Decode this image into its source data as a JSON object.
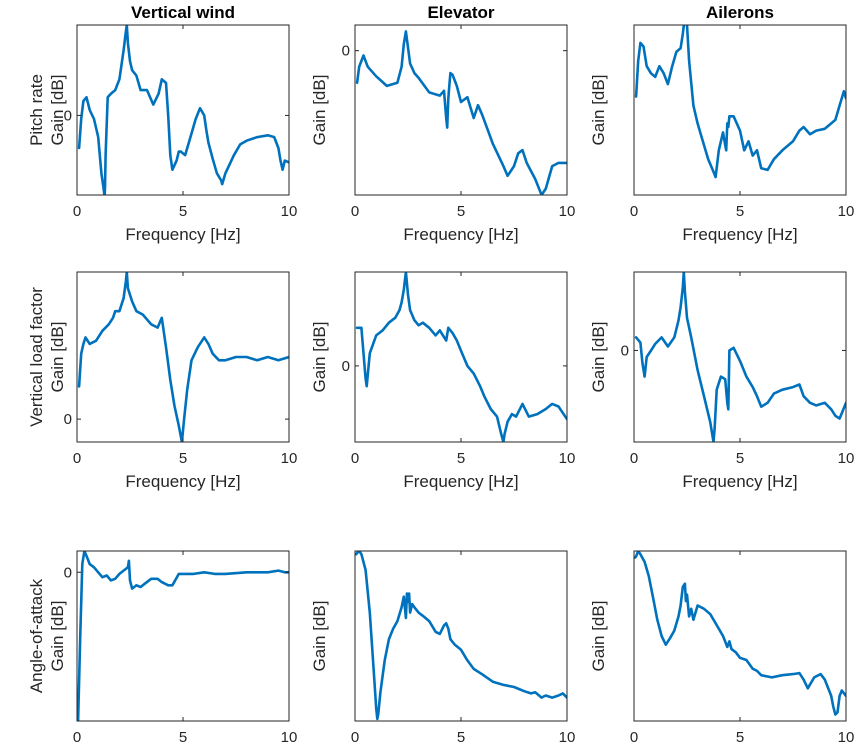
{
  "figure": {
    "column_titles": [
      "Vertical wind",
      "Elevator",
      "Ailerons"
    ],
    "row_labels": [
      "Pitch rate",
      "Vertical load factor",
      "Angle-of-attack"
    ],
    "line_color": "#0072BD",
    "axis_color": "#262626"
  },
  "chart_data": [
    {
      "type": "line",
      "row": 0,
      "col": 0,
      "title": "Vertical wind",
      "row_label": "Pitch rate",
      "xlabel": "Frequency [Hz]",
      "ylabel": "Gain [dB]",
      "xlim": [
        0,
        10
      ],
      "ylim": [
        -44,
        50
      ],
      "xticks": [
        0,
        5,
        10
      ],
      "xtick_labels": [
        "0",
        "5",
        "10"
      ],
      "yticks": [
        0
      ],
      "ytick_labels": [
        "0"
      ],
      "x": [
        0.1,
        0.2,
        0.3,
        0.45,
        0.6,
        0.8,
        1.0,
        1.15,
        1.25,
        1.3,
        1.32,
        1.35,
        1.45,
        1.6,
        1.8,
        2.0,
        2.1,
        2.2,
        2.3,
        2.35,
        2.4,
        2.5,
        2.6,
        2.8,
        3.0,
        3.3,
        3.6,
        3.85,
        4.0,
        4.2,
        4.3,
        4.4,
        4.5,
        4.7,
        4.8,
        4.9,
        5.1,
        5.3,
        5.6,
        5.8,
        6.0,
        6.1,
        6.2,
        6.4,
        6.6,
        6.8,
        6.85,
        7.0,
        7.4,
        7.7,
        8.0,
        8.5,
        9.0,
        9.3,
        9.5,
        9.6,
        9.7,
        9.8,
        10.0
      ],
      "y": [
        -18,
        -2,
        8,
        10,
        3,
        -2,
        -12,
        -32,
        -40,
        -45,
        -40,
        -22,
        10,
        12,
        14,
        20,
        28,
        36,
        46,
        50,
        40,
        30,
        25,
        22,
        14,
        14,
        6,
        12,
        20,
        18,
        0,
        -22,
        -30,
        -25,
        -20,
        -20,
        -22,
        -14,
        -2,
        4,
        0,
        -8,
        -15,
        -24,
        -32,
        -36,
        -38,
        -32,
        -22,
        -16,
        -14,
        -12,
        -11,
        -12,
        -18,
        -25,
        -30,
        -25,
        -26
      ]
    },
    {
      "type": "line",
      "row": 0,
      "col": 1,
      "title": "Elevator",
      "row_label": "",
      "xlabel": "Frequency [Hz]",
      "ylabel": "Gain [dB]",
      "xlim": [
        0,
        10
      ],
      "ylim": [
        -90,
        16
      ],
      "xticks": [
        0,
        5,
        10
      ],
      "xtick_labels": [
        "0",
        "5",
        "10"
      ],
      "yticks": [
        0
      ],
      "ytick_labels": [
        "0"
      ],
      "x": [
        0.1,
        0.2,
        0.4,
        0.6,
        1.0,
        1.5,
        2.0,
        2.2,
        2.3,
        2.4,
        2.5,
        2.6,
        2.8,
        3.0,
        3.5,
        4.0,
        4.2,
        4.3,
        4.35,
        4.4,
        4.45,
        4.5,
        4.6,
        4.8,
        5.0,
        5.3,
        5.6,
        5.8,
        6.0,
        6.5,
        7.0,
        7.2,
        7.5,
        7.7,
        7.9,
        8.1,
        8.5,
        8.8,
        9.0,
        9.3,
        9.6,
        10.0
      ],
      "y": [
        -20,
        -10,
        -3,
        -10,
        -16,
        -22,
        -20,
        -10,
        4,
        12,
        2,
        -8,
        -14,
        -17,
        -26,
        -28,
        -25,
        -42,
        -48,
        -30,
        -22,
        -14,
        -15,
        -22,
        -32,
        -29,
        -42,
        -34,
        -40,
        -58,
        -72,
        -78,
        -72,
        -64,
        -62,
        -70,
        -80,
        -90,
        -86,
        -72,
        -70,
        -70
      ]
    },
    {
      "type": "line",
      "row": 0,
      "col": 2,
      "title": "Ailerons",
      "row_label": "",
      "xlabel": "Frequency [Hz]",
      "ylabel": "Gain [dB]",
      "xlim": [
        0,
        10
      ],
      "ylim": [
        -80,
        15
      ],
      "xticks": [
        0,
        5,
        10
      ],
      "xtick_labels": [
        "0",
        "5",
        "10"
      ],
      "yticks": [],
      "ytick_labels": [],
      "x": [
        0.1,
        0.2,
        0.3,
        0.45,
        0.6,
        0.8,
        1.0,
        1.2,
        1.4,
        1.6,
        1.8,
        2.0,
        2.2,
        2.3,
        2.4,
        2.5,
        2.6,
        2.8,
        3.0,
        3.2,
        3.5,
        3.75,
        3.85,
        4.0,
        4.2,
        4.3,
        4.35,
        4.4,
        4.45,
        4.5,
        4.7,
        5.0,
        5.2,
        5.4,
        5.6,
        5.8,
        6.0,
        6.3,
        6.6,
        7.0,
        7.5,
        7.8,
        8.0,
        8.3,
        8.6,
        9.0,
        9.3,
        9.5,
        9.7,
        9.9,
        10.0
      ],
      "y": [
        -25,
        -5,
        5,
        3,
        -8,
        -12,
        -14,
        -8,
        -12,
        -18,
        -8,
        0,
        2,
        10,
        20,
        15,
        -5,
        -30,
        -40,
        -48,
        -60,
        -67,
        -70,
        -55,
        -45,
        -52,
        -55,
        -40,
        -42,
        -36,
        -36,
        -44,
        -55,
        -50,
        -58,
        -55,
        -65,
        -66,
        -60,
        -55,
        -50,
        -44,
        -42,
        -46,
        -44,
        -43,
        -40,
        -38,
        -30,
        -22,
        -26
      ]
    },
    {
      "type": "line",
      "row": 1,
      "col": 0,
      "title": "",
      "row_label": "Vertical load factor",
      "xlabel": "Frequency [Hz]",
      "ylabel": "Gain [dB]",
      "xlim": [
        0,
        10
      ],
      "ylim": [
        -7,
        45
      ],
      "xticks": [
        0,
        5,
        10
      ],
      "xtick_labels": [
        "0",
        "5",
        "10"
      ],
      "yticks": [
        0
      ],
      "ytick_labels": [
        "0"
      ],
      "x": [
        0.1,
        0.2,
        0.3,
        0.4,
        0.6,
        0.9,
        1.2,
        1.5,
        1.7,
        1.8,
        2.0,
        2.2,
        2.3,
        2.35,
        2.4,
        2.6,
        2.8,
        3.1,
        3.5,
        3.8,
        4.0,
        4.2,
        4.4,
        4.6,
        4.8,
        4.95,
        5.05,
        5.2,
        5.4,
        5.7,
        6.0,
        6.2,
        6.4,
        6.7,
        7.0,
        7.5,
        8.0,
        8.5,
        9.0,
        9.5,
        10.0
      ],
      "y": [
        10,
        20,
        23,
        25,
        23,
        24,
        27,
        29,
        31,
        33,
        33,
        37,
        42,
        45,
        40,
        36,
        33,
        32,
        29,
        28,
        31,
        22,
        12,
        4,
        -2,
        -7,
        0,
        9,
        18,
        22,
        25,
        23,
        20,
        18,
        18,
        19,
        19,
        18,
        19,
        18,
        19
      ]
    },
    {
      "type": "line",
      "row": 1,
      "col": 1,
      "title": "",
      "row_label": "",
      "xlabel": "Frequency [Hz]",
      "ylabel": "Gain [dB]",
      "xlim": [
        0,
        10
      ],
      "ylim": [
        -30,
        37
      ],
      "xticks": [
        0,
        5,
        10
      ],
      "xtick_labels": [
        "0",
        "5",
        "10"
      ],
      "yticks": [
        0
      ],
      "ytick_labels": [
        "0"
      ],
      "x": [
        0.1,
        0.3,
        0.4,
        0.5,
        0.55,
        0.7,
        1.0,
        1.3,
        1.6,
        1.9,
        2.1,
        2.2,
        2.3,
        2.4,
        2.5,
        2.6,
        2.8,
        3.0,
        3.2,
        3.5,
        3.8,
        4.0,
        4.3,
        4.4,
        4.6,
        4.8,
        5.0,
        5.3,
        5.6,
        5.9,
        6.1,
        6.4,
        6.7,
        6.9,
        7.0,
        7.05,
        7.2,
        7.4,
        7.6,
        7.9,
        8.2,
        8.6,
        9.0,
        9.3,
        9.6,
        10.0
      ],
      "y": [
        15,
        15,
        5,
        -5,
        -8,
        5,
        12,
        14,
        17,
        19,
        22,
        25,
        30,
        37,
        28,
        22,
        18,
        16,
        17,
        15,
        12,
        14,
        10,
        15,
        13,
        10,
        6,
        0,
        -3,
        -8,
        -12,
        -17,
        -20,
        -27,
        -30,
        -27,
        -22,
        -19,
        -20,
        -15,
        -20,
        -19,
        -17,
        -15,
        -16,
        -21
      ]
    },
    {
      "type": "line",
      "row": 1,
      "col": 2,
      "title": "",
      "row_label": "",
      "xlabel": "Frequency [Hz]",
      "ylabel": "Gain [dB]",
      "xlim": [
        0,
        10
      ],
      "ylim": [
        -70,
        60
      ],
      "xticks": [
        0,
        5,
        10
      ],
      "xtick_labels": [
        "0",
        "5",
        "10"
      ],
      "yticks": [
        0
      ],
      "ytick_labels": [
        "0"
      ],
      "x": [
        0.1,
        0.3,
        0.4,
        0.5,
        0.6,
        0.8,
        1.0,
        1.3,
        1.6,
        1.9,
        2.1,
        2.2,
        2.3,
        2.35,
        2.4,
        2.5,
        2.7,
        3.0,
        3.3,
        3.6,
        3.75,
        3.8,
        3.9,
        4.1,
        4.3,
        4.4,
        4.45,
        4.5,
        4.7,
        5.0,
        5.3,
        5.6,
        5.8,
        6.0,
        6.3,
        6.6,
        7.0,
        7.5,
        7.8,
        8.0,
        8.3,
        8.6,
        9.0,
        9.3,
        9.5,
        9.7,
        9.8,
        10.0
      ],
      "y": [
        10,
        6,
        -10,
        -20,
        -5,
        0,
        5,
        10,
        3,
        10,
        23,
        33,
        48,
        60,
        45,
        25,
        10,
        -15,
        -35,
        -55,
        -70,
        -60,
        -30,
        -20,
        -22,
        -40,
        -45,
        0,
        2,
        -8,
        -20,
        -28,
        -35,
        -43,
        -40,
        -33,
        -30,
        -28,
        -26,
        -35,
        -40,
        -42,
        -40,
        -45,
        -50,
        -52,
        -48,
        -40
      ]
    },
    {
      "type": "line",
      "row": 2,
      "col": 0,
      "title": "",
      "row_label": "Angle-of-attack",
      "xlabel": "Frequency [Hz]",
      "ylabel": "Gain [dB]",
      "xlim": [
        0,
        10
      ],
      "ylim": [
        -91,
        13
      ],
      "xticks": [
        0,
        5,
        10
      ],
      "xtick_labels": [
        "0",
        "5",
        "10"
      ],
      "yticks": [
        0
      ],
      "ytick_labels": [
        "0"
      ],
      "x": [
        0.05,
        0.15,
        0.25,
        0.35,
        0.45,
        0.6,
        0.8,
        1.0,
        1.2,
        1.4,
        1.6,
        1.8,
        2.0,
        2.2,
        2.4,
        2.45,
        2.5,
        2.6,
        2.8,
        3.0,
        3.2,
        3.5,
        3.8,
        4.0,
        4.3,
        4.5,
        4.8,
        5.0,
        5.5,
        6.0,
        6.5,
        7.0,
        8.0,
        9.0,
        9.5,
        9.8,
        10.0
      ],
      "y": [
        -91,
        -40,
        5,
        13,
        10,
        5,
        3,
        0,
        -3,
        -2,
        -5,
        -4,
        -1,
        1,
        3,
        7,
        -5,
        -10,
        -8,
        -9,
        -7,
        -4,
        -4,
        -6,
        -8,
        -8,
        -1,
        -1,
        -1,
        0,
        -1,
        -1,
        0,
        0,
        1,
        0,
        0
      ]
    },
    {
      "type": "line",
      "row": 2,
      "col": 1,
      "title": "",
      "row_label": "",
      "xlabel": "Frequency [Hz]",
      "ylabel": "Gain [dB]",
      "xlim": [
        0,
        10
      ],
      "ylim": [
        -122,
        38
      ],
      "xticks": [
        0,
        5,
        10
      ],
      "xtick_labels": [
        "0",
        "5",
        "10"
      ],
      "yticks": [],
      "ytick_labels": [],
      "x": [
        0.05,
        0.1,
        0.2,
        0.3,
        0.5,
        0.7,
        0.9,
        1.0,
        1.05,
        1.1,
        1.2,
        1.4,
        1.6,
        1.8,
        2.0,
        2.2,
        2.3,
        2.4,
        2.45,
        2.5,
        2.55,
        2.6,
        2.7,
        2.8,
        3.0,
        3.2,
        3.5,
        3.8,
        4.0,
        4.2,
        4.3,
        4.4,
        4.5,
        4.7,
        5.0,
        5.3,
        5.6,
        6.0,
        6.5,
        7.0,
        7.5,
        8.0,
        8.3,
        8.5,
        8.8,
        9.0,
        9.3,
        9.6,
        9.8,
        10.0
      ],
      "y": [
        35,
        36,
        38,
        35,
        20,
        -20,
        -80,
        -110,
        -120,
        -115,
        -95,
        -65,
        -45,
        -35,
        -28,
        -15,
        -5,
        -25,
        -2,
        -10,
        -2,
        -20,
        -12,
        -15,
        -20,
        -23,
        -28,
        -38,
        -40,
        -32,
        -30,
        -35,
        -45,
        -50,
        -55,
        -65,
        -73,
        -78,
        -85,
        -88,
        -90,
        -94,
        -96,
        -95,
        -100,
        -98,
        -100,
        -98,
        -96,
        -100
      ]
    },
    {
      "type": "line",
      "row": 2,
      "col": 2,
      "title": "",
      "row_label": "",
      "xlabel": "Frequency [Hz]",
      "ylabel": "Gain [dB]",
      "xlim": [
        0,
        10
      ],
      "ylim": [
        -118,
        38
      ],
      "xticks": [
        0,
        5,
        10
      ],
      "xtick_labels": [
        "0",
        "5",
        "10"
      ],
      "yticks": [],
      "ytick_labels": [],
      "x": [
        0.05,
        0.1,
        0.2,
        0.3,
        0.5,
        0.7,
        0.9,
        1.1,
        1.3,
        1.5,
        1.7,
        1.9,
        2.1,
        2.2,
        2.3,
        2.4,
        2.45,
        2.5,
        2.6,
        2.7,
        2.8,
        3.0,
        3.3,
        3.6,
        3.9,
        4.2,
        4.4,
        4.5,
        4.6,
        4.8,
        5.0,
        5.3,
        5.6,
        5.8,
        6.0,
        6.5,
        7.0,
        7.5,
        7.8,
        8.0,
        8.2,
        8.5,
        8.8,
        9.0,
        9.3,
        9.4,
        9.5,
        9.6,
        9.7,
        9.8,
        10.0
      ],
      "y": [
        32,
        33,
        38,
        35,
        28,
        15,
        -5,
        -25,
        -40,
        -48,
        -42,
        -35,
        -22,
        -12,
        5,
        8,
        -8,
        -2,
        -22,
        -15,
        -25,
        -12,
        -15,
        -20,
        -30,
        -40,
        -50,
        -45,
        -52,
        -55,
        -60,
        -62,
        -70,
        -72,
        -76,
        -78,
        -76,
        -75,
        -74,
        -80,
        -88,
        -78,
        -75,
        -80,
        -95,
        -105,
        -112,
        -110,
        -95,
        -90,
        -95
      ]
    }
  ]
}
